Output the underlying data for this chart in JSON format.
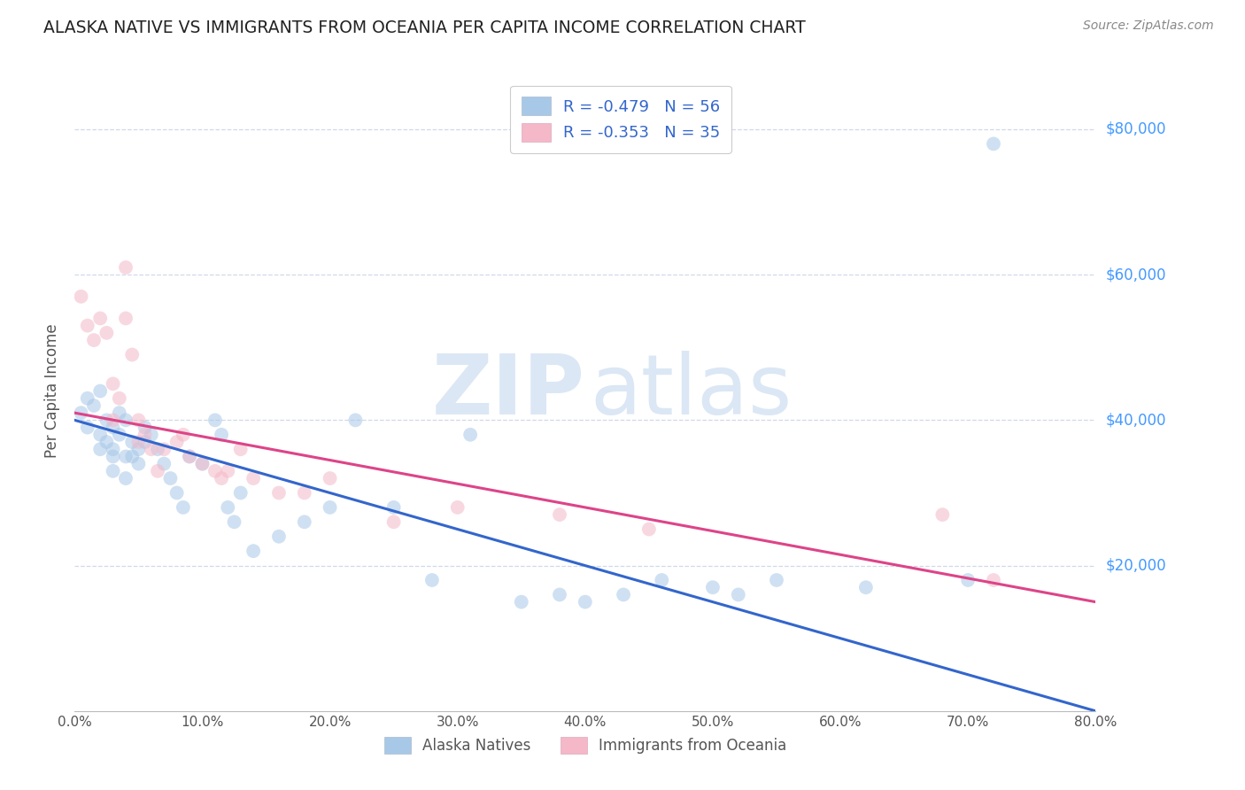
{
  "title": "ALASKA NATIVE VS IMMIGRANTS FROM OCEANIA PER CAPITA INCOME CORRELATION CHART",
  "source": "Source: ZipAtlas.com",
  "ylabel": "Per Capita Income",
  "ytick_labels": [
    "$20,000",
    "$40,000",
    "$60,000",
    "$80,000"
  ],
  "ytick_values": [
    20000,
    40000,
    60000,
    80000
  ],
  "ylim": [
    0,
    88000
  ],
  "xlim": [
    0.0,
    0.8
  ],
  "xtick_positions": [
    0.0,
    0.1,
    0.2,
    0.3,
    0.4,
    0.5,
    0.6,
    0.7,
    0.8
  ],
  "xtick_labels": [
    "0.0%",
    "10.0%",
    "20.0%",
    "30.0%",
    "40.0%",
    "50.0%",
    "60.0%",
    "70.0%",
    "80.0%"
  ],
  "watermark_zip": "ZIP",
  "watermark_atlas": "atlas",
  "legend_blue_r": "R = -0.479",
  "legend_blue_n": "N = 56",
  "legend_pink_r": "R = -0.353",
  "legend_pink_n": "N = 35",
  "legend_blue_label": "Alaska Natives",
  "legend_pink_label": "Immigrants from Oceania",
  "blue_color": "#a8c8e8",
  "pink_color": "#f4b8c8",
  "blue_line_color": "#3366cc",
  "pink_line_color": "#dd4488",
  "title_color": "#222222",
  "source_color": "#888888",
  "ytick_color": "#4499ff",
  "grid_color": "#d0d8e8",
  "blue_x": [
    0.005,
    0.01,
    0.01,
    0.015,
    0.02,
    0.02,
    0.02,
    0.025,
    0.025,
    0.03,
    0.03,
    0.03,
    0.03,
    0.035,
    0.035,
    0.04,
    0.04,
    0.04,
    0.045,
    0.045,
    0.05,
    0.05,
    0.055,
    0.055,
    0.06,
    0.065,
    0.07,
    0.075,
    0.08,
    0.085,
    0.09,
    0.1,
    0.11,
    0.115,
    0.12,
    0.125,
    0.13,
    0.14,
    0.16,
    0.18,
    0.2,
    0.22,
    0.25,
    0.28,
    0.31,
    0.35,
    0.38,
    0.4,
    0.43,
    0.46,
    0.5,
    0.52,
    0.55,
    0.62,
    0.7,
    0.72
  ],
  "blue_y": [
    41000,
    43000,
    39000,
    42000,
    44000,
    38000,
    36000,
    40000,
    37000,
    39000,
    36000,
    33000,
    35000,
    41000,
    38000,
    40000,
    35000,
    32000,
    37000,
    35000,
    36000,
    34000,
    39000,
    37000,
    38000,
    36000,
    34000,
    32000,
    30000,
    28000,
    35000,
    34000,
    40000,
    38000,
    28000,
    26000,
    30000,
    22000,
    24000,
    26000,
    28000,
    40000,
    28000,
    18000,
    38000,
    15000,
    16000,
    15000,
    16000,
    18000,
    17000,
    16000,
    18000,
    17000,
    18000,
    78000
  ],
  "pink_x": [
    0.005,
    0.01,
    0.015,
    0.02,
    0.025,
    0.03,
    0.03,
    0.035,
    0.04,
    0.04,
    0.045,
    0.05,
    0.05,
    0.055,
    0.06,
    0.065,
    0.07,
    0.08,
    0.085,
    0.09,
    0.1,
    0.11,
    0.115,
    0.12,
    0.13,
    0.14,
    0.16,
    0.18,
    0.2,
    0.25,
    0.3,
    0.38,
    0.45,
    0.68,
    0.72
  ],
  "pink_y": [
    57000,
    53000,
    51000,
    54000,
    52000,
    45000,
    40000,
    43000,
    61000,
    54000,
    49000,
    40000,
    37000,
    38000,
    36000,
    33000,
    36000,
    37000,
    38000,
    35000,
    34000,
    33000,
    32000,
    33000,
    36000,
    32000,
    30000,
    30000,
    32000,
    26000,
    28000,
    27000,
    25000,
    27000,
    18000
  ],
  "blue_trend_x0": 0.0,
  "blue_trend_y0": 40000,
  "blue_trend_x1": 0.8,
  "blue_trend_y1": 0,
  "pink_trend_x0": 0.0,
  "pink_trend_y0": 41000,
  "pink_trend_x1": 0.8,
  "pink_trend_y1": 15000,
  "marker_size": 130,
  "marker_alpha": 0.55,
  "line_width": 2.2
}
